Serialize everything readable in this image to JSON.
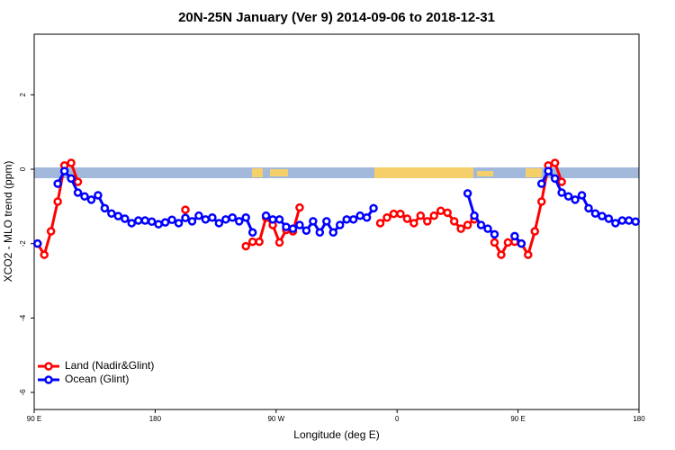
{
  "chart_data": {
    "type": "line",
    "title": "20N-25N January (Ver 9)   2014-09-06 to 2018-12-31",
    "xlabel": "Longitude (deg E)",
    "ylabel": "XCO2 - MLO trend (ppm)",
    "x": [
      92.5,
      97.5,
      102.5,
      107.5,
      112.5,
      117.5,
      122.5,
      127.5,
      132.5,
      137.5,
      142.5,
      147.5,
      152.5,
      157.5,
      162.5,
      167.5,
      172.5,
      177.5,
      182.5,
      187.5,
      192.5,
      197.5,
      202.5,
      207.5,
      212.5,
      217.5,
      222.5,
      227.5,
      232.5,
      237.5,
      242.5,
      247.5,
      252.5,
      257.5,
      262.5,
      267.5,
      272.5,
      277.5,
      282.5,
      287.5,
      292.5,
      297.5,
      302.5,
      307.5,
      312.5,
      317.5,
      322.5,
      327.5,
      332.5,
      337.5,
      342.5,
      347.5,
      352.5,
      357.5,
      362.5,
      367.5,
      372.5,
      377.5,
      382.5,
      387.5,
      392.5,
      397.5,
      402.5,
      407.5,
      412.5,
      417.5,
      422.5,
      427.5,
      432.5,
      437.5,
      442.5,
      447.5,
      452.5,
      457.5,
      462.5,
      467.5,
      472.5,
      477.5,
      482.5,
      487.5,
      492.5,
      497.5,
      502.5,
      507.5,
      512.5,
      517.5,
      522.5,
      527.5,
      532.5,
      537.5
    ],
    "series": [
      {
        "name": "Land (Nadir&Glint)",
        "color": "#ff0000",
        "values": [
          -2.0,
          -2.3,
          -1.67,
          -0.87,
          0.1,
          0.17,
          -0.34,
          null,
          null,
          null,
          null,
          null,
          null,
          null,
          null,
          null,
          null,
          null,
          null,
          null,
          null,
          null,
          -1.09,
          null,
          null,
          null,
          null,
          null,
          null,
          null,
          null,
          -2.07,
          -1.95,
          -1.95,
          -1.3,
          -1.5,
          -1.97,
          -1.63,
          -1.67,
          -1.03,
          null,
          null,
          null,
          null,
          null,
          null,
          null,
          null,
          null,
          null,
          null,
          -1.45,
          -1.3,
          -1.2,
          -1.2,
          -1.33,
          -1.45,
          -1.25,
          -1.4,
          -1.25,
          -1.12,
          -1.17,
          -1.4,
          -1.6,
          -1.5,
          -1.35,
          null,
          null,
          -1.97,
          -2.3,
          -1.97,
          -1.95,
          -2.0,
          -2.3,
          -1.67,
          -0.87,
          0.1,
          0.17,
          -0.34,
          null,
          null,
          null,
          null,
          null,
          null,
          null,
          null,
          null,
          null,
          null
        ]
      },
      {
        "name": "Ocean (Glint)",
        "color": "#0000ff",
        "values": [
          -2.0,
          null,
          null,
          -0.39,
          -0.05,
          -0.25,
          -0.63,
          -0.73,
          -0.82,
          -0.7,
          -1.05,
          -1.19,
          -1.26,
          -1.33,
          -1.45,
          -1.38,
          -1.38,
          -1.41,
          -1.48,
          -1.43,
          -1.36,
          -1.45,
          -1.31,
          -1.4,
          -1.25,
          -1.35,
          -1.3,
          -1.45,
          -1.35,
          -1.3,
          -1.4,
          -1.3,
          -1.7,
          null,
          -1.25,
          -1.35,
          -1.35,
          -1.55,
          -1.6,
          -1.5,
          -1.65,
          -1.4,
          -1.7,
          -1.4,
          -1.7,
          -1.5,
          -1.35,
          -1.35,
          -1.25,
          -1.3,
          -1.05,
          null,
          null,
          null,
          null,
          null,
          null,
          null,
          null,
          null,
          null,
          null,
          null,
          null,
          -0.65,
          -1.25,
          -1.5,
          -1.6,
          -1.75,
          null,
          null,
          -1.8,
          -2.0,
          null,
          null,
          -0.39,
          -0.05,
          -0.25,
          -0.63,
          -0.73,
          -0.82,
          -0.7,
          -1.05,
          -1.19,
          -1.26,
          -1.33,
          -1.45,
          -1.38,
          -1.38,
          -1.41
        ]
      }
    ],
    "xlim": [
      90,
      540
    ],
    "xticks": [
      {
        "value": 90,
        "label": "90 E"
      },
      180,
      {
        "value": 270,
        "label": "90 W"
      },
      {
        "value": 360,
        "label": "0"
      },
      {
        "value": 450,
        "label": "90 E"
      },
      {
        "value": 540,
        "label": "180"
      }
    ],
    "ylim": [
      -6.46,
      3.63
    ],
    "yticks": [
      2,
      0,
      -2,
      -4,
      -6
    ],
    "grid": false,
    "legend": "bottomleft"
  }
}
